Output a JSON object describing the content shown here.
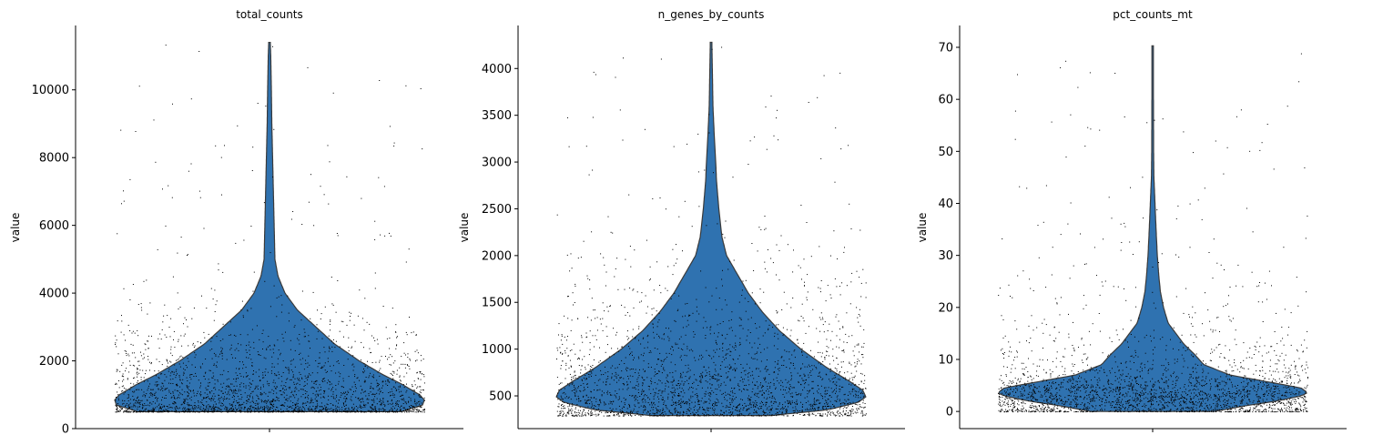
{
  "chart_data": [
    {
      "type": "violin",
      "title": "total_counts",
      "ylabel": "value",
      "ylim": [
        0,
        11900
      ],
      "yticks": [
        0,
        2000,
        4000,
        6000,
        8000,
        10000
      ],
      "ytick_labels": [
        "0",
        "2000",
        "4000",
        "6000",
        "8000",
        "10000"
      ],
      "data_range": [
        500,
        11400
      ],
      "mode": 850,
      "color": "#2f72b0",
      "profile": [
        [
          500,
          0.85
        ],
        [
          700,
          0.99
        ],
        [
          850,
          1.0
        ],
        [
          1000,
          0.97
        ],
        [
          1300,
          0.86
        ],
        [
          1600,
          0.73
        ],
        [
          2000,
          0.58
        ],
        [
          2500,
          0.42
        ],
        [
          3000,
          0.3
        ],
        [
          3500,
          0.18
        ],
        [
          4000,
          0.1
        ],
        [
          4500,
          0.055
        ],
        [
          5000,
          0.035
        ],
        [
          6000,
          0.03
        ],
        [
          7000,
          0.025
        ],
        [
          8000,
          0.02
        ],
        [
          9000,
          0.015
        ],
        [
          10000,
          0.012
        ],
        [
          11000,
          0.008
        ],
        [
          11400,
          0.005
        ]
      ]
    },
    {
      "type": "violin",
      "title": "n_genes_by_counts",
      "ylabel": "value",
      "ylim": [
        150,
        4460
      ],
      "yticks": [
        500,
        1000,
        1500,
        2000,
        2500,
        3000,
        3500,
        4000
      ],
      "ytick_labels": [
        "500",
        "1000",
        "1500",
        "2000",
        "2500",
        "3000",
        "3500",
        "4000"
      ],
      "data_range": [
        290,
        4280
      ],
      "mode": 490,
      "color": "#2f72b0",
      "profile": [
        [
          290,
          0.39
        ],
        [
          350,
          0.75
        ],
        [
          430,
          0.95
        ],
        [
          490,
          1.0
        ],
        [
          560,
          0.98
        ],
        [
          650,
          0.9
        ],
        [
          800,
          0.75
        ],
        [
          1000,
          0.58
        ],
        [
          1200,
          0.44
        ],
        [
          1400,
          0.33
        ],
        [
          1600,
          0.24
        ],
        [
          1800,
          0.17
        ],
        [
          2000,
          0.1
        ],
        [
          2200,
          0.07
        ],
        [
          2500,
          0.05
        ],
        [
          2800,
          0.035
        ],
        [
          3000,
          0.03
        ],
        [
          3300,
          0.02
        ],
        [
          3600,
          0.012
        ],
        [
          4000,
          0.008
        ],
        [
          4280,
          0.005
        ]
      ]
    },
    {
      "type": "violin",
      "title": "pct_counts_mt",
      "ylabel": "value",
      "ylim": [
        -3.3,
        74.2
      ],
      "yticks": [
        0,
        10,
        20,
        30,
        40,
        50,
        60,
        70
      ],
      "ytick_labels": [
        "0",
        "10",
        "20",
        "30",
        "40",
        "50",
        "60",
        "70"
      ],
      "data_range": [
        0,
        70.3
      ],
      "mode": 3.6,
      "color": "#2f72b0",
      "profile": [
        [
          0,
          0.4
        ],
        [
          1,
          0.58
        ],
        [
          2,
          0.8
        ],
        [
          3,
          0.96
        ],
        [
          3.6,
          1.0
        ],
        [
          4.5,
          0.96
        ],
        [
          5.5,
          0.78
        ],
        [
          7,
          0.5
        ],
        [
          9,
          0.33
        ],
        [
          11,
          0.27
        ],
        [
          13,
          0.2
        ],
        [
          15,
          0.15
        ],
        [
          17,
          0.1
        ],
        [
          20,
          0.07
        ],
        [
          23,
          0.05
        ],
        [
          26,
          0.04
        ],
        [
          30,
          0.03
        ],
        [
          35,
          0.022
        ],
        [
          40,
          0.015
        ],
        [
          45,
          0.008
        ],
        [
          50,
          0.006
        ],
        [
          60,
          0.005
        ],
        [
          70.3,
          0.004
        ]
      ]
    }
  ]
}
